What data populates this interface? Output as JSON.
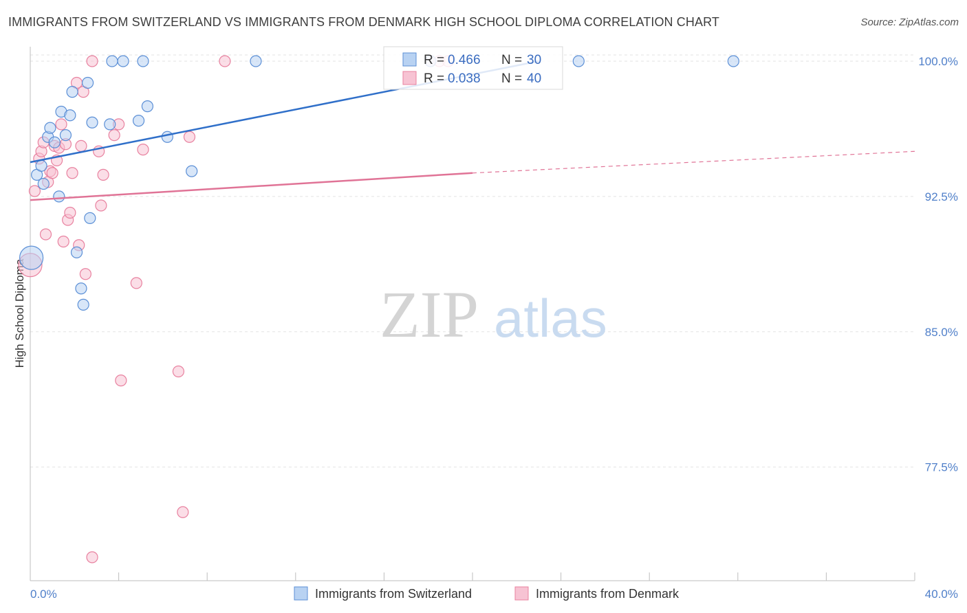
{
  "header": {
    "title": "IMMIGRANTS FROM SWITZERLAND VS IMMIGRANTS FROM DENMARK HIGH SCHOOL DIPLOMA CORRELATION CHART",
    "source": "Source: ZipAtlas.com"
  },
  "watermark": {
    "zip": "ZIP",
    "atlas": "atlas"
  },
  "stats": {
    "switzerland": {
      "r_label": "R = ",
      "r_value": "0.466",
      "n_label": "N = ",
      "n_value": "30"
    },
    "denmark": {
      "r_label": "R = ",
      "r_value": "0.038",
      "n_label": "N = ",
      "n_value": "40"
    }
  },
  "colors": {
    "switzerland_fill": "#b8d2f2",
    "switzerland_stroke": "#5b8fd6",
    "switzerland_line": "#2f6fc9",
    "denmark_fill": "#f7c3d3",
    "denmark_stroke": "#e8819f",
    "denmark_line": "#e07396",
    "tick_text": "#4f7fc9",
    "grid": "#e3e3e3"
  },
  "chart_data": {
    "type": "scatter",
    "title": "IMMIGRANTS FROM SWITZERLAND VS IMMIGRANTS FROM DENMARK HIGH SCHOOL DIPLOMA CORRELATION CHART",
    "xlabel": "",
    "ylabel": "High School Diploma",
    "xlim": [
      0,
      40
    ],
    "ylim": [
      71.2,
      100.8
    ],
    "x_tick_labels": [
      "0.0%",
      "40.0%"
    ],
    "y_ticks": [
      100.0,
      92.5,
      85.0,
      77.5
    ],
    "y_tick_labels": [
      "100.0%",
      "92.5%",
      "85.0%",
      "77.5%"
    ],
    "grid": true,
    "legend_position": "bottom",
    "series": [
      {
        "name": "Immigrants from Switzerland",
        "color": "#5b8fd6",
        "points": [
          [
            0.05,
            89.1
          ],
          [
            0.3,
            93.7
          ],
          [
            0.5,
            94.2
          ],
          [
            0.6,
            93.2
          ],
          [
            0.8,
            95.8
          ],
          [
            0.9,
            96.3
          ],
          [
            1.1,
            95.5
          ],
          [
            1.3,
            92.5
          ],
          [
            1.4,
            97.2
          ],
          [
            1.6,
            95.9
          ],
          [
            1.8,
            97.0
          ],
          [
            1.9,
            98.3
          ],
          [
            2.1,
            89.4
          ],
          [
            2.3,
            87.4
          ],
          [
            2.4,
            86.5
          ],
          [
            2.6,
            98.8
          ],
          [
            2.7,
            91.3
          ],
          [
            2.8,
            96.6
          ],
          [
            3.6,
            96.5
          ],
          [
            3.7,
            100.0
          ],
          [
            4.2,
            100.0
          ],
          [
            4.9,
            96.7
          ],
          [
            5.1,
            100.0
          ],
          [
            5.3,
            97.5
          ],
          [
            6.2,
            95.8
          ],
          [
            7.3,
            93.9
          ],
          [
            10.2,
            100.0
          ],
          [
            18.1,
            100.0
          ],
          [
            24.8,
            100.0
          ],
          [
            31.8,
            100.0
          ]
        ],
        "trend": {
          "x": [
            0,
            23.0
          ],
          "y": [
            94.4,
            100.0
          ]
        }
      },
      {
        "name": "Immigrants from Denmark",
        "color": "#e8819f",
        "points": [
          [
            0.0,
            88.7
          ],
          [
            0.2,
            92.8
          ],
          [
            0.4,
            94.6
          ],
          [
            0.5,
            95.0
          ],
          [
            0.6,
            95.5
          ],
          [
            0.7,
            90.4
          ],
          [
            0.8,
            93.3
          ],
          [
            0.9,
            93.9
          ],
          [
            1.0,
            93.8
          ],
          [
            1.1,
            95.3
          ],
          [
            1.2,
            94.5
          ],
          [
            1.3,
            95.2
          ],
          [
            1.4,
            96.5
          ],
          [
            1.5,
            90.0
          ],
          [
            1.6,
            95.4
          ],
          [
            1.7,
            91.2
          ],
          [
            1.8,
            91.6
          ],
          [
            1.9,
            93.8
          ],
          [
            2.1,
            98.8
          ],
          [
            2.2,
            89.8
          ],
          [
            2.3,
            95.3
          ],
          [
            2.4,
            98.3
          ],
          [
            2.5,
            88.2
          ],
          [
            2.8,
            100.0
          ],
          [
            2.8,
            72.5
          ],
          [
            3.1,
            95.0
          ],
          [
            3.2,
            92.0
          ],
          [
            3.3,
            93.7
          ],
          [
            3.8,
            95.9
          ],
          [
            4.0,
            96.5
          ],
          [
            4.1,
            82.3
          ],
          [
            4.8,
            87.7
          ],
          [
            5.1,
            95.1
          ],
          [
            6.7,
            82.8
          ],
          [
            6.9,
            75.0
          ],
          [
            7.2,
            95.8
          ],
          [
            8.8,
            100.0
          ],
          [
            18.1,
            100.0
          ],
          [
            18.5,
            100.0
          ],
          [
            18.9,
            100.0
          ]
        ],
        "trend": {
          "x": [
            0,
            20.0
          ],
          "y": [
            92.3,
            93.8
          ]
        },
        "trend_extension": {
          "x": [
            20.0,
            40.0
          ],
          "y": [
            93.8,
            95.0
          ]
        }
      }
    ]
  }
}
